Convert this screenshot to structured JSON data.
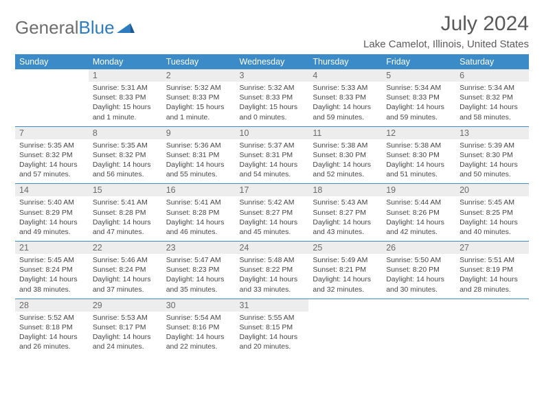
{
  "logo": {
    "text_gray": "General",
    "text_blue": "Blue"
  },
  "title": "July 2024",
  "location": "Lake Camelot, Illinois, United States",
  "colors": {
    "header_bg": "#3b8bc8",
    "header_text": "#ffffff",
    "daynum_bg": "#ededed",
    "text_gray": "#6a6a6a",
    "body_text": "#454545",
    "logo_gray": "#6d6d6d",
    "logo_blue": "#2f7bbf"
  },
  "days_of_week": [
    "Sunday",
    "Monday",
    "Tuesday",
    "Wednesday",
    "Thursday",
    "Friday",
    "Saturday"
  ],
  "weeks": [
    [
      null,
      {
        "n": "1",
        "sr": "5:31 AM",
        "ss": "8:33 PM",
        "dl": "15 hours and 1 minute."
      },
      {
        "n": "2",
        "sr": "5:32 AM",
        "ss": "8:33 PM",
        "dl": "15 hours and 1 minute."
      },
      {
        "n": "3",
        "sr": "5:32 AM",
        "ss": "8:33 PM",
        "dl": "15 hours and 0 minutes."
      },
      {
        "n": "4",
        "sr": "5:33 AM",
        "ss": "8:33 PM",
        "dl": "14 hours and 59 minutes."
      },
      {
        "n": "5",
        "sr": "5:34 AM",
        "ss": "8:33 PM",
        "dl": "14 hours and 59 minutes."
      },
      {
        "n": "6",
        "sr": "5:34 AM",
        "ss": "8:32 PM",
        "dl": "14 hours and 58 minutes."
      }
    ],
    [
      {
        "n": "7",
        "sr": "5:35 AM",
        "ss": "8:32 PM",
        "dl": "14 hours and 57 minutes."
      },
      {
        "n": "8",
        "sr": "5:35 AM",
        "ss": "8:32 PM",
        "dl": "14 hours and 56 minutes."
      },
      {
        "n": "9",
        "sr": "5:36 AM",
        "ss": "8:31 PM",
        "dl": "14 hours and 55 minutes."
      },
      {
        "n": "10",
        "sr": "5:37 AM",
        "ss": "8:31 PM",
        "dl": "14 hours and 54 minutes."
      },
      {
        "n": "11",
        "sr": "5:38 AM",
        "ss": "8:30 PM",
        "dl": "14 hours and 52 minutes."
      },
      {
        "n": "12",
        "sr": "5:38 AM",
        "ss": "8:30 PM",
        "dl": "14 hours and 51 minutes."
      },
      {
        "n": "13",
        "sr": "5:39 AM",
        "ss": "8:30 PM",
        "dl": "14 hours and 50 minutes."
      }
    ],
    [
      {
        "n": "14",
        "sr": "5:40 AM",
        "ss": "8:29 PM",
        "dl": "14 hours and 49 minutes."
      },
      {
        "n": "15",
        "sr": "5:41 AM",
        "ss": "8:28 PM",
        "dl": "14 hours and 47 minutes."
      },
      {
        "n": "16",
        "sr": "5:41 AM",
        "ss": "8:28 PM",
        "dl": "14 hours and 46 minutes."
      },
      {
        "n": "17",
        "sr": "5:42 AM",
        "ss": "8:27 PM",
        "dl": "14 hours and 45 minutes."
      },
      {
        "n": "18",
        "sr": "5:43 AM",
        "ss": "8:27 PM",
        "dl": "14 hours and 43 minutes."
      },
      {
        "n": "19",
        "sr": "5:44 AM",
        "ss": "8:26 PM",
        "dl": "14 hours and 42 minutes."
      },
      {
        "n": "20",
        "sr": "5:45 AM",
        "ss": "8:25 PM",
        "dl": "14 hours and 40 minutes."
      }
    ],
    [
      {
        "n": "21",
        "sr": "5:45 AM",
        "ss": "8:24 PM",
        "dl": "14 hours and 38 minutes."
      },
      {
        "n": "22",
        "sr": "5:46 AM",
        "ss": "8:24 PM",
        "dl": "14 hours and 37 minutes."
      },
      {
        "n": "23",
        "sr": "5:47 AM",
        "ss": "8:23 PM",
        "dl": "14 hours and 35 minutes."
      },
      {
        "n": "24",
        "sr": "5:48 AM",
        "ss": "8:22 PM",
        "dl": "14 hours and 33 minutes."
      },
      {
        "n": "25",
        "sr": "5:49 AM",
        "ss": "8:21 PM",
        "dl": "14 hours and 32 minutes."
      },
      {
        "n": "26",
        "sr": "5:50 AM",
        "ss": "8:20 PM",
        "dl": "14 hours and 30 minutes."
      },
      {
        "n": "27",
        "sr": "5:51 AM",
        "ss": "8:19 PM",
        "dl": "14 hours and 28 minutes."
      }
    ],
    [
      {
        "n": "28",
        "sr": "5:52 AM",
        "ss": "8:18 PM",
        "dl": "14 hours and 26 minutes."
      },
      {
        "n": "29",
        "sr": "5:53 AM",
        "ss": "8:17 PM",
        "dl": "14 hours and 24 minutes."
      },
      {
        "n": "30",
        "sr": "5:54 AM",
        "ss": "8:16 PM",
        "dl": "14 hours and 22 minutes."
      },
      {
        "n": "31",
        "sr": "5:55 AM",
        "ss": "8:15 PM",
        "dl": "14 hours and 20 minutes."
      },
      null,
      null,
      null
    ]
  ],
  "labels": {
    "sunrise": "Sunrise:",
    "sunset": "Sunset:",
    "daylight": "Daylight:"
  }
}
